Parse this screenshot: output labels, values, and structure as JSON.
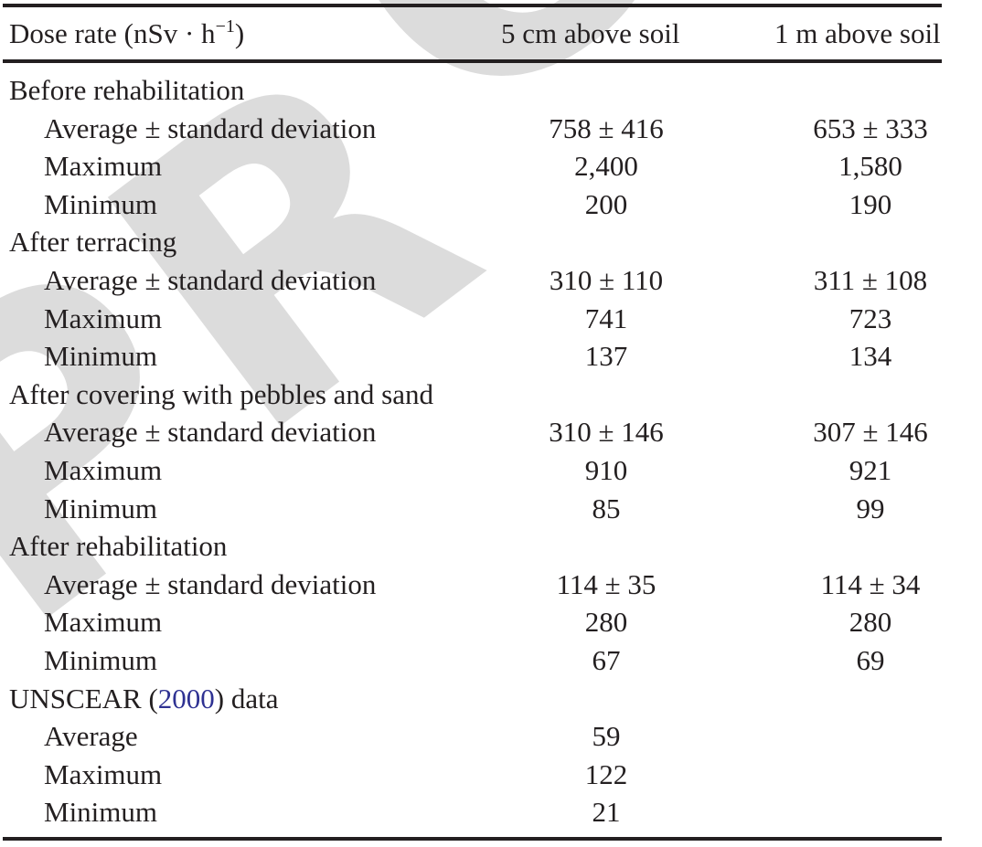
{
  "table": {
    "header": {
      "col0_prefix": "Dose rate (nSv · h",
      "col0_superscript": "−1",
      "col0_suffix": ")",
      "col1": "5 cm above soil",
      "col2": "1 m above soil"
    },
    "rows": [
      {
        "type": "section",
        "label": "Before rehabilitation",
        "v5": "",
        "v1": ""
      },
      {
        "type": "sub",
        "label": "Average ± standard deviation",
        "v5": "758 ± 416",
        "v1": "653 ± 333"
      },
      {
        "type": "sub",
        "label": "Maximum",
        "v5": "2,400",
        "v1": "1,580"
      },
      {
        "type": "sub",
        "label": "Minimum",
        "v5": "200",
        "v1": "190"
      },
      {
        "type": "section",
        "label": "After terracing",
        "v5": "",
        "v1": ""
      },
      {
        "type": "sub",
        "label": "Average ± standard deviation",
        "v5": "310 ± 110",
        "v1": "311 ± 108"
      },
      {
        "type": "sub",
        "label": "Maximum",
        "v5": "741",
        "v1": "723"
      },
      {
        "type": "sub",
        "label": "Minimum",
        "v5": "137",
        "v1": "134"
      },
      {
        "type": "section",
        "label": "After covering with pebbles and sand",
        "v5": "",
        "v1": ""
      },
      {
        "type": "sub",
        "label": "Average ± standard deviation",
        "v5": "310 ± 146",
        "v1": "307 ± 146"
      },
      {
        "type": "sub",
        "label": "Maximum",
        "v5": "910",
        "v1": "921"
      },
      {
        "type": "sub",
        "label": "Minimum",
        "v5": "85",
        "v1": "99"
      },
      {
        "type": "section",
        "label": "After rehabilitation",
        "v5": "",
        "v1": ""
      },
      {
        "type": "sub",
        "label": "Average ± standard deviation",
        "v5": "114 ± 35",
        "v1": "114 ± 34"
      },
      {
        "type": "sub",
        "label": "Maximum",
        "v5": "280",
        "v1": "280"
      },
      {
        "type": "sub",
        "label": "Minimum",
        "v5": "67",
        "v1": "69"
      },
      {
        "type": "section-cite",
        "label_prefix": "UNSCEAR (",
        "cite": "2000",
        "label_suffix": ") data",
        "v5": "",
        "v1": ""
      },
      {
        "type": "sub",
        "label": "Average",
        "v5": "59",
        "v1": ""
      },
      {
        "type": "sub",
        "label": "Maximum",
        "v5": "122",
        "v1": ""
      },
      {
        "type": "sub",
        "label": "Minimum",
        "v5": "21",
        "v1": ""
      }
    ]
  },
  "watermark": {
    "letters": [
      "P",
      "R",
      "O"
    ],
    "color": "#dcdcdc"
  },
  "colors": {
    "text": "#231f20",
    "citation_link": "#2e3192"
  }
}
